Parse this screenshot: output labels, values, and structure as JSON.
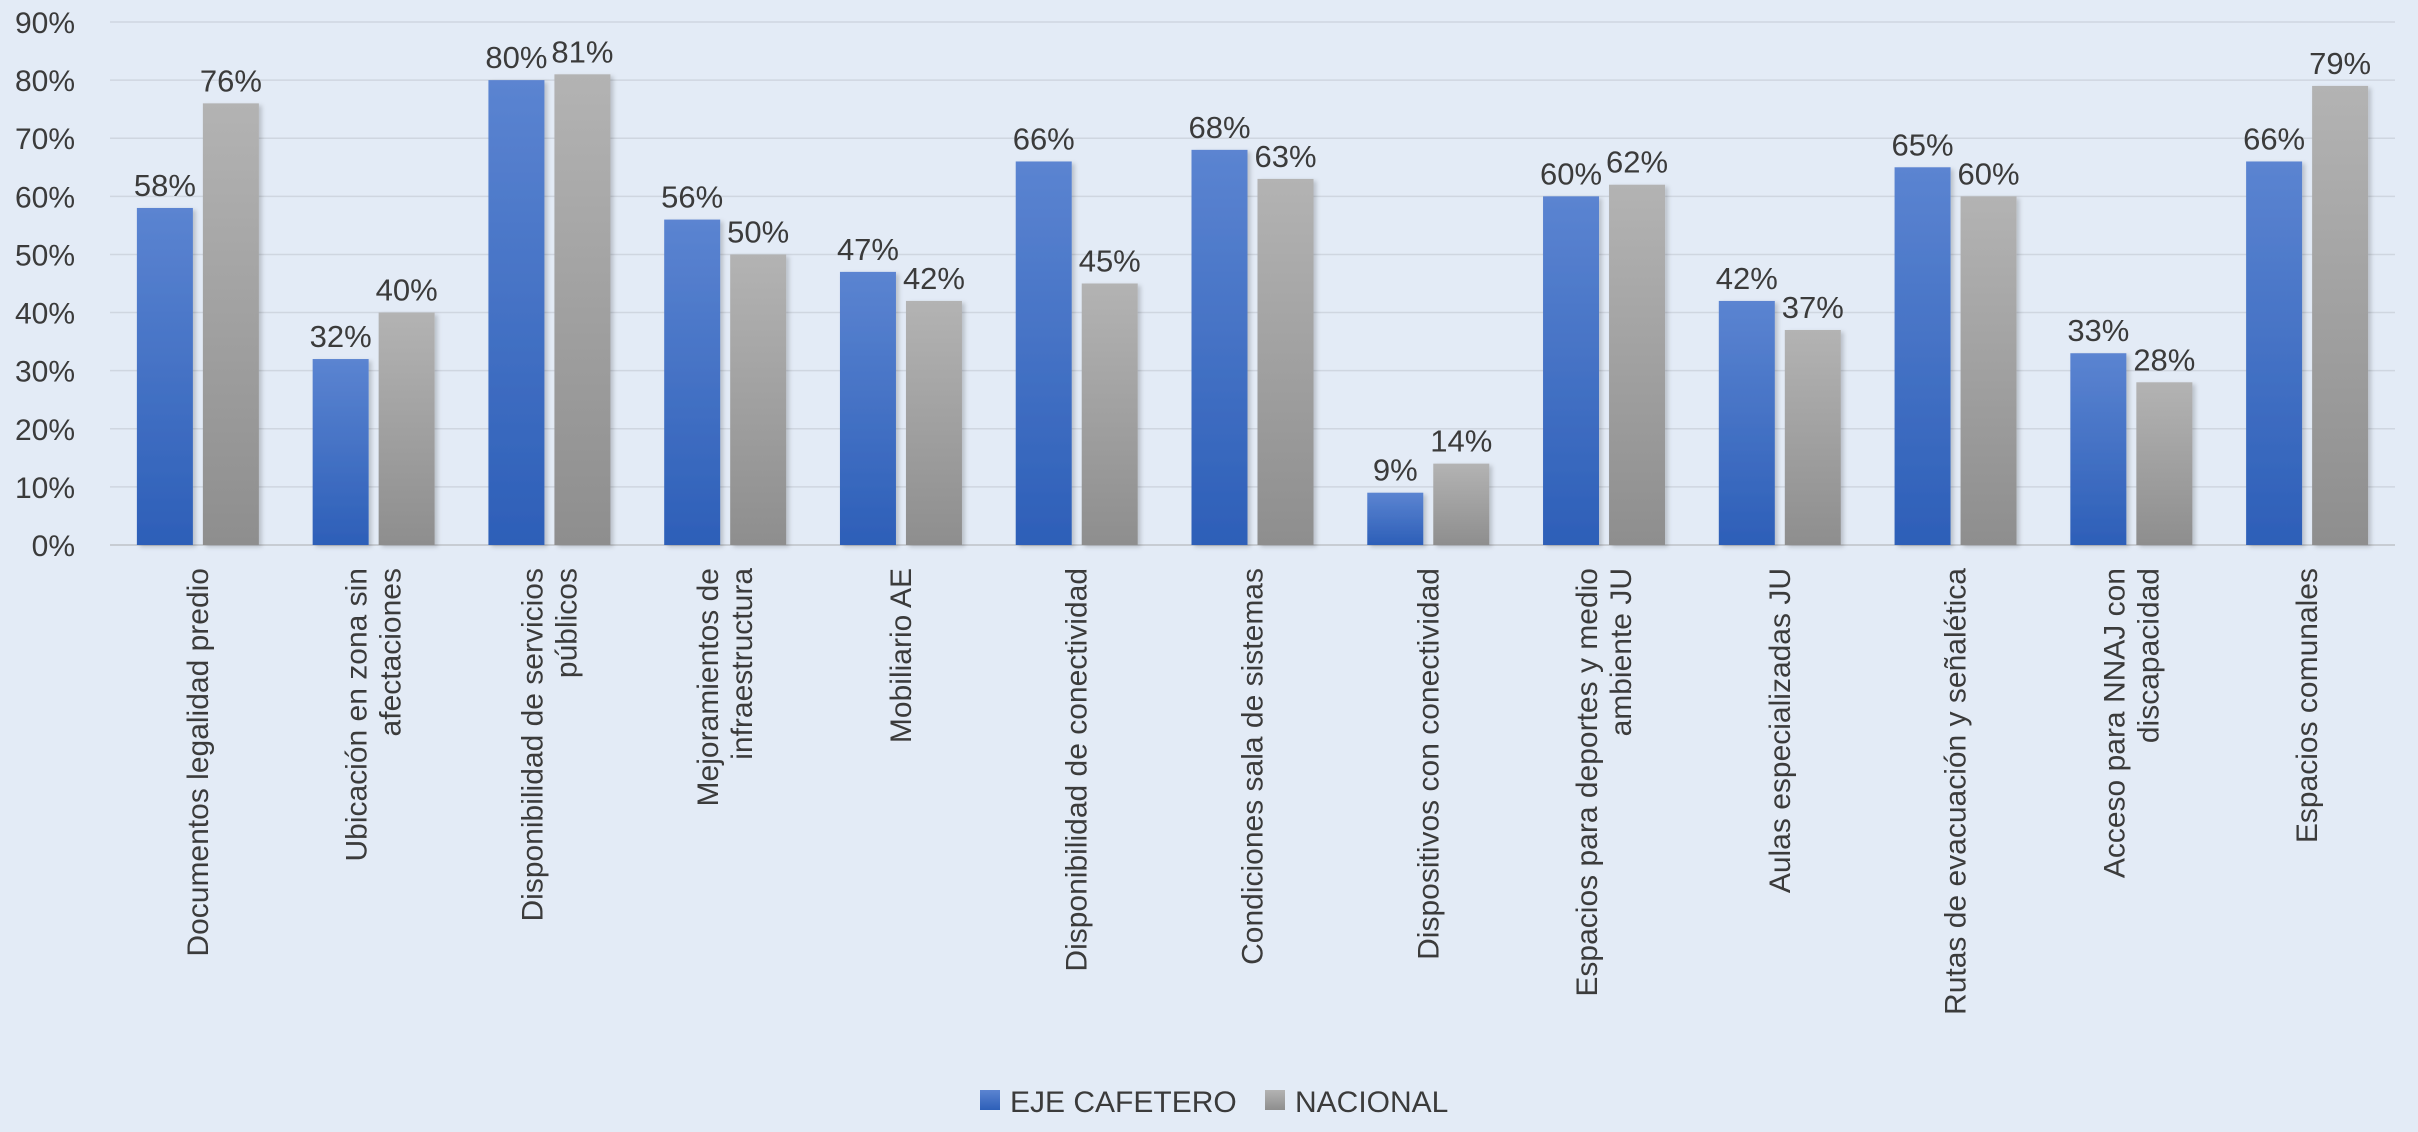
{
  "chart_data": {
    "type": "bar",
    "categories": [
      "Documentos legalidad predio",
      "Ubicación en zona sin afectaciones",
      "Disponibilidad de servicios públicos",
      "Mejoramientos de infraestructura",
      "Mobiliario AE",
      "Disponibilidad de conectividad",
      "Condiciones sala de sistemas",
      "Dispositivos con conectividad",
      "Espacios para deportes y medio ambiente JU",
      "Aulas especializadas JU",
      "Rutas de evacuación y señalética",
      "Acceso para NNAJ con discapacidad",
      "Espacios comunales"
    ],
    "category_lines": [
      [
        "Documentos legalidad predio"
      ],
      [
        "Ubicación en zona sin",
        "afectaciones"
      ],
      [
        "Disponibilidad de servicios",
        "públicos"
      ],
      [
        "Mejoramientos de",
        "infraestructura"
      ],
      [
        "Mobiliario AE"
      ],
      [
        "Disponibilidad de conectividad"
      ],
      [
        "Condiciones sala de sistemas"
      ],
      [
        "Dispositivos con conectividad"
      ],
      [
        "Espacios para deportes y medio",
        "ambiente JU"
      ],
      [
        "Aulas especializadas JU"
      ],
      [
        "Rutas de evacuación y señalética"
      ],
      [
        "Acceso para NNAJ con",
        "discapacidad"
      ],
      [
        "Espacios comunales"
      ]
    ],
    "series": [
      {
        "name": "EJE CAFETERO",
        "color": "#4472c4",
        "values": [
          58,
          32,
          80,
          56,
          47,
          66,
          68,
          9,
          60,
          42,
          65,
          33,
          66
        ],
        "labels": [
          "58%",
          "32%",
          "80%",
          "56%",
          "47%",
          "66%",
          "68%",
          "9%",
          "60%",
          "42%",
          "65%",
          "33%",
          "66%"
        ]
      },
      {
        "name": "NACIONAL",
        "color": "#a5a5a5",
        "values": [
          76,
          40,
          81,
          50,
          42,
          45,
          63,
          14,
          62,
          37,
          60,
          28,
          79
        ],
        "labels": [
          "76%",
          "40%",
          "81%",
          "50%",
          "42%",
          "45%",
          "63%",
          "14%",
          "62%",
          "37%",
          "60%",
          "28%",
          "79%"
        ]
      }
    ],
    "ylim": [
      0,
      90
    ],
    "yticks": [
      0,
      10,
      20,
      30,
      40,
      50,
      60,
      70,
      80,
      90
    ],
    "ytick_labels": [
      "0%",
      "10%",
      "20%",
      "30%",
      "40%",
      "50%",
      "60%",
      "70%",
      "80%",
      "90%"
    ],
    "grid": true,
    "legend_position": "bottom",
    "title": "",
    "xlabel": "",
    "ylabel": ""
  }
}
